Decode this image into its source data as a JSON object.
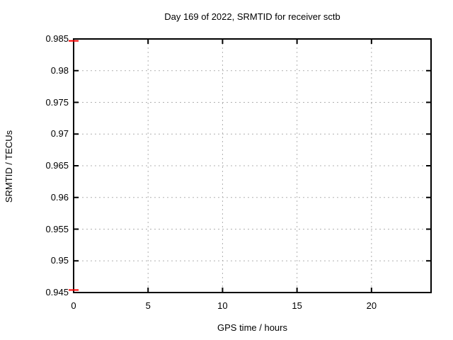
{
  "window": {
    "background": "#ffffff",
    "text_color": "#000000"
  },
  "chart_data": {
    "type": "line",
    "title": "Day 169 of 2022, SRMTID for receiver sctb",
    "xlabel": "GPS time / hours",
    "ylabel": "SRMTID / TECUs",
    "xlim": [
      0,
      24
    ],
    "ylim": [
      0.945,
      0.985
    ],
    "xticks": [
      {
        "value": 0,
        "label": "0"
      },
      {
        "value": 5,
        "label": "5"
      },
      {
        "value": 10,
        "label": "10"
      },
      {
        "value": 15,
        "label": "15"
      },
      {
        "value": 20,
        "label": "20"
      }
    ],
    "yticks": [
      {
        "value": 0.945,
        "label": "0.945"
      },
      {
        "value": 0.95,
        "label": "0.95"
      },
      {
        "value": 0.955,
        "label": "0.955"
      },
      {
        "value": 0.96,
        "label": "0.96"
      },
      {
        "value": 0.965,
        "label": "0.965"
      },
      {
        "value": 0.97,
        "label": "0.97"
      },
      {
        "value": 0.975,
        "label": "0.975"
      },
      {
        "value": 0.98,
        "label": "0.98"
      },
      {
        "value": 0.985,
        "label": "0.985"
      }
    ],
    "grid": true,
    "grid_style": "dashed",
    "legend": "none",
    "axis_color": "#000000",
    "grid_color": "#b0b0b0",
    "series": [
      {
        "name": "srmtid",
        "color": "#ff0000",
        "marker": "horizontal-dash",
        "points": [
          {
            "x": 0,
            "y": 0.9847
          },
          {
            "x": 0,
            "y": 0.9454
          }
        ]
      }
    ]
  }
}
